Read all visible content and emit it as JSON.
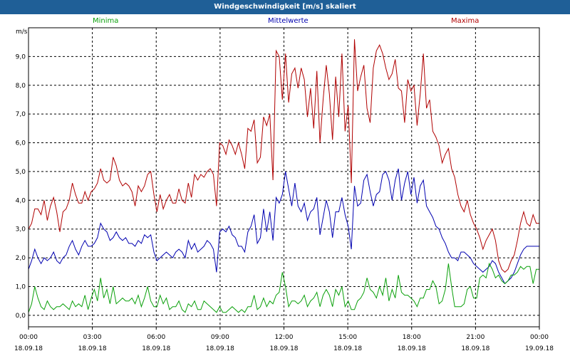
{
  "window": {
    "title": "Windgeschwindigkeit [m/s] skaliert"
  },
  "legend": {
    "min": "Minima",
    "mid": "Mittelwerte",
    "max": "Maxima"
  },
  "colors": {
    "min": "#0aa00a",
    "mid": "#0000b0",
    "max": "#b00000",
    "titlebar": "#1f5f97"
  },
  "chart_data": {
    "type": "line",
    "title": "Windgeschwindigkeit [m/s] skaliert",
    "ylabel": "m/s",
    "xlabel": "",
    "ylim": [
      -0.4,
      10.0
    ],
    "xlim_hours": [
      0,
      24
    ],
    "grid": true,
    "legend_placement": "top",
    "y_ticks": [
      "0,0",
      "1,0",
      "2,0",
      "3,0",
      "4,0",
      "5,0",
      "6,0",
      "7,0",
      "8,0",
      "9,0"
    ],
    "x_ticks": [
      {
        "time": "00:00",
        "date": "18.09.18"
      },
      {
        "time": "03:00",
        "date": "18.09.18"
      },
      {
        "time": "06:00",
        "date": "18.09.18"
      },
      {
        "time": "09:00",
        "date": "18.09.18"
      },
      {
        "time": "12:00",
        "date": "18.09.18"
      },
      {
        "time": "15:00",
        "date": "18.09.18"
      },
      {
        "time": "18:00",
        "date": "18.09.18"
      },
      {
        "time": "21:00",
        "date": "18.09.18"
      },
      {
        "time": "00:00",
        "date": "19.09.18"
      }
    ],
    "series": [
      {
        "name": "Maxima",
        "color": "#b00000",
        "values": [
          3.0,
          3.2,
          3.7,
          3.7,
          3.5,
          4.0,
          3.3,
          3.8,
          4.1,
          3.6,
          2.9,
          3.6,
          3.7,
          4.0,
          4.6,
          4.2,
          3.9,
          3.9,
          4.3,
          4.0,
          4.3,
          4.4,
          4.6,
          5.1,
          4.7,
          4.6,
          4.7,
          5.5,
          5.2,
          4.7,
          4.5,
          4.6,
          4.5,
          4.3,
          3.8,
          4.5,
          4.3,
          4.5,
          4.9,
          5.0,
          4.2,
          3.6,
          4.2,
          3.7,
          4.0,
          4.2,
          3.9,
          3.9,
          4.4,
          4.0,
          3.9,
          4.6,
          4.1,
          4.9,
          4.7,
          4.9,
          4.8,
          5.0,
          5.1,
          4.9,
          3.8,
          6.0,
          5.9,
          5.6,
          6.1,
          5.9,
          5.6,
          6.0,
          5.6,
          5.1,
          6.5,
          6.4,
          6.8,
          5.3,
          5.5,
          6.9,
          6.6,
          7.0,
          4.7,
          9.2,
          9.0,
          7.5,
          9.1,
          7.4,
          8.4,
          8.6,
          7.9,
          8.6,
          8.2,
          6.9,
          7.9,
          6.5,
          8.5,
          6.0,
          7.5,
          8.7,
          7.7,
          6.1,
          8.3,
          6.9,
          9.1,
          6.4,
          7.3,
          4.6,
          9.6,
          7.8,
          8.3,
          8.7,
          7.2,
          6.7,
          8.6,
          9.2,
          9.4,
          9.1,
          8.6,
          8.2,
          8.4,
          8.9,
          7.9,
          7.8,
          6.7,
          8.2,
          7.8,
          8.0,
          6.6,
          7.7,
          9.1,
          7.2,
          7.5,
          6.4,
          6.2,
          5.9,
          5.3,
          5.6,
          5.8,
          5.1,
          4.8,
          4.2,
          3.8,
          3.6,
          4.0,
          3.5,
          3.2,
          3.0,
          2.7,
          2.3,
          2.6,
          2.8,
          3.0,
          2.6,
          1.9,
          1.6,
          1.5,
          1.6,
          1.9,
          2.1,
          2.6,
          3.2,
          3.6,
          3.2,
          3.1,
          3.5,
          3.2,
          3.2
        ]
      },
      {
        "name": "Mittelwerte",
        "color": "#0000b0",
        "values": [
          1.6,
          1.9,
          2.3,
          2.0,
          1.8,
          2.0,
          1.9,
          2.0,
          2.2,
          1.9,
          1.8,
          2.0,
          2.1,
          2.4,
          2.6,
          2.3,
          2.1,
          2.4,
          2.6,
          2.4,
          2.4,
          2.5,
          2.7,
          3.2,
          3.0,
          2.9,
          2.6,
          2.7,
          2.9,
          2.7,
          2.6,
          2.7,
          2.5,
          2.5,
          2.4,
          2.6,
          2.5,
          2.8,
          2.7,
          2.8,
          2.2,
          1.9,
          2.0,
          2.1,
          2.2,
          2.1,
          2.0,
          2.2,
          2.3,
          2.2,
          2.0,
          2.6,
          2.3,
          2.5,
          2.2,
          2.3,
          2.4,
          2.6,
          2.5,
          2.3,
          1.5,
          2.9,
          3.0,
          2.9,
          3.1,
          2.8,
          2.7,
          2.4,
          2.4,
          2.2,
          2.9,
          3.1,
          3.5,
          2.5,
          2.7,
          3.7,
          2.9,
          3.6,
          2.6,
          4.1,
          3.9,
          4.2,
          5.0,
          4.4,
          3.8,
          4.6,
          3.8,
          3.6,
          3.9,
          3.3,
          3.6,
          3.7,
          4.1,
          2.8,
          3.4,
          4.0,
          3.6,
          2.7,
          3.6,
          3.6,
          4.1,
          3.5,
          3.1,
          2.3,
          4.5,
          3.8,
          3.9,
          4.7,
          4.9,
          4.3,
          3.8,
          4.2,
          4.3,
          4.9,
          5.0,
          4.7,
          4.0,
          4.7,
          5.1,
          4.0,
          4.6,
          5.0,
          4.2,
          4.8,
          3.9,
          4.5,
          4.7,
          3.8,
          3.6,
          3.4,
          3.1,
          3.0,
          2.7,
          2.5,
          2.2,
          2.0,
          2.0,
          1.9,
          2.2,
          2.2,
          2.1,
          2.0,
          1.8,
          1.7,
          1.6,
          1.5,
          1.6,
          1.7,
          1.9,
          1.8,
          1.5,
          1.3,
          1.1,
          1.2,
          1.3,
          1.5,
          1.8,
          2.1,
          2.3,
          2.4,
          2.4,
          2.4,
          2.4,
          2.4
        ]
      },
      {
        "name": "Minima",
        "color": "#0aa00a",
        "values": [
          0.1,
          0.4,
          1.0,
          0.6,
          0.3,
          0.2,
          0.5,
          0.3,
          0.2,
          0.3,
          0.3,
          0.4,
          0.3,
          0.2,
          0.5,
          0.3,
          0.4,
          0.3,
          0.7,
          0.2,
          0.6,
          0.9,
          0.5,
          1.3,
          0.6,
          0.9,
          0.4,
          1.0,
          0.4,
          0.5,
          0.6,
          0.5,
          0.5,
          0.6,
          0.4,
          0.7,
          0.3,
          0.6,
          1.0,
          0.5,
          0.3,
          0.3,
          0.7,
          0.4,
          0.6,
          0.2,
          0.3,
          0.3,
          0.5,
          0.2,
          0.1,
          0.4,
          0.3,
          0.5,
          0.2,
          0.2,
          0.5,
          0.4,
          0.3,
          0.2,
          0.1,
          0.3,
          0.1,
          0.1,
          0.2,
          0.3,
          0.2,
          0.1,
          0.2,
          0.1,
          0.3,
          0.3,
          0.7,
          0.2,
          0.3,
          0.6,
          0.3,
          0.5,
          0.4,
          0.7,
          0.8,
          1.5,
          1.0,
          0.3,
          0.5,
          0.5,
          0.4,
          0.5,
          0.7,
          0.3,
          0.5,
          0.6,
          0.8,
          0.3,
          0.7,
          0.9,
          0.7,
          0.3,
          0.9,
          0.7,
          1.0,
          0.3,
          0.5,
          0.2,
          0.2,
          0.5,
          0.6,
          0.8,
          1.3,
          0.9,
          0.8,
          0.6,
          1.0,
          0.7,
          1.3,
          0.5,
          0.9,
          0.6,
          1.4,
          0.8,
          0.7,
          0.7,
          0.6,
          0.5,
          0.3,
          0.6,
          0.6,
          0.9,
          0.9,
          1.2,
          1.0,
          0.4,
          0.5,
          0.9,
          1.8,
          1.0,
          0.3,
          0.3,
          0.3,
          0.4,
          0.9,
          1.0,
          0.6,
          0.6,
          1.3,
          1.4,
          1.3,
          1.8,
          1.6,
          1.3,
          1.4,
          1.2,
          1.1,
          1.2,
          1.4,
          1.4,
          1.5,
          1.7,
          1.6,
          1.7,
          1.7,
          1.1,
          1.6,
          1.6
        ]
      }
    ]
  }
}
